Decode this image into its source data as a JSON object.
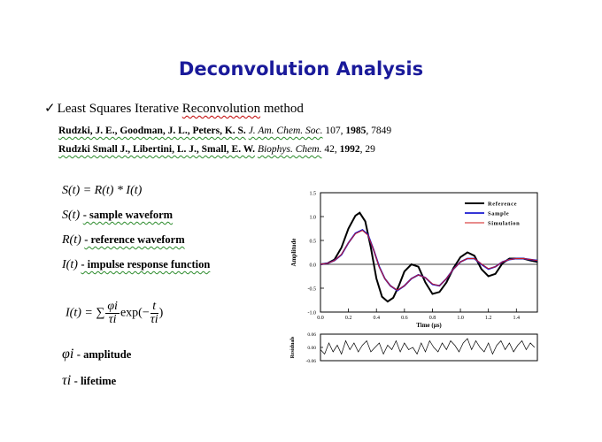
{
  "title": "Deconvolution Analysis",
  "method": {
    "check": "✓",
    "text": "Least Squares Iterative Reconvolution method"
  },
  "references": [
    {
      "authors": "Rudzki, J. E., Goodman, J. L., Peters, K. S.",
      "journal": "J. Am. Chem. Soc.",
      "volume": "107",
      "year": "1985",
      "page": "7849"
    },
    {
      "authors": "Rudzki Small J., Libertini, L. J., Small, E. W.",
      "journal": "Biophys. Chem.",
      "volume": "42",
      "year": "1992",
      "page": "29"
    }
  ],
  "equations": {
    "main": "S(t) = R(t) * I(t)",
    "s_sym": "S(t)",
    "s_desc": "- sample waveform",
    "r_sym": "R(t)",
    "r_desc": "- reference waveform",
    "i_sym": "I(t)",
    "i_desc": "- impulse response function",
    "sum_lhs": "I(t) = ∑",
    "phi_i": "φi",
    "tau_i": "τi",
    "exp": "exp(−",
    "t": "t",
    "close": ")",
    "phi_sym": "φi",
    "phi_desc": "- amplitude",
    "tau_sym": "τi",
    "tau_desc": "- lifetime"
  },
  "chart_data": [
    {
      "type": "line",
      "xlabel": "Time (μs)",
      "ylabel": "Amplitude",
      "xlim": [
        0.0,
        1.55
      ],
      "ylim": [
        -1.0,
        1.5
      ],
      "xticks": [
        "0.0",
        "0.2",
        "0.4",
        "0.6",
        "0.8",
        "1.0",
        "1.2",
        "1.4"
      ],
      "yticks": [
        "1.5",
        "1.0",
        "0.5",
        "0.0",
        "-0.5",
        "-1.0"
      ],
      "legend_position": "top-right",
      "series": [
        {
          "name": "Reference",
          "color": "#000000",
          "x": [
            0.0,
            0.05,
            0.1,
            0.15,
            0.2,
            0.25,
            0.28,
            0.32,
            0.36,
            0.4,
            0.44,
            0.48,
            0.52,
            0.56,
            0.6,
            0.65,
            0.7,
            0.75,
            0.8,
            0.85,
            0.9,
            0.95,
            1.0,
            1.05,
            1.1,
            1.15,
            1.2,
            1.25,
            1.3,
            1.35,
            1.4,
            1.45,
            1.5,
            1.55
          ],
          "y": [
            0.0,
            0.02,
            0.1,
            0.35,
            0.75,
            1.02,
            1.08,
            0.9,
            0.35,
            -0.3,
            -0.68,
            -0.78,
            -0.7,
            -0.45,
            -0.15,
            0.0,
            -0.05,
            -0.38,
            -0.62,
            -0.58,
            -0.38,
            -0.08,
            0.15,
            0.25,
            0.18,
            -0.1,
            -0.25,
            -0.2,
            0.02,
            0.12,
            0.12,
            0.12,
            0.08,
            0.05
          ]
        },
        {
          "name": "Sample",
          "color": "#1a1ad0",
          "x": [
            0.0,
            0.05,
            0.1,
            0.15,
            0.2,
            0.25,
            0.3,
            0.34,
            0.38,
            0.42,
            0.46,
            0.5,
            0.55,
            0.6,
            0.65,
            0.7,
            0.75,
            0.8,
            0.85,
            0.9,
            0.95,
            1.0,
            1.05,
            1.1,
            1.15,
            1.2,
            1.25,
            1.3,
            1.35,
            1.4,
            1.45,
            1.5,
            1.55
          ],
          "y": [
            0.0,
            0.02,
            0.08,
            0.2,
            0.45,
            0.65,
            0.72,
            0.62,
            0.3,
            -0.05,
            -0.3,
            -0.45,
            -0.55,
            -0.45,
            -0.3,
            -0.22,
            -0.28,
            -0.42,
            -0.45,
            -0.3,
            -0.1,
            0.05,
            0.12,
            0.12,
            0.0,
            -0.1,
            -0.05,
            0.05,
            0.1,
            0.12,
            0.12,
            0.1,
            0.08
          ]
        },
        {
          "name": "Simulation",
          "color": "#d01a1a",
          "x": [
            0.0,
            0.05,
            0.1,
            0.15,
            0.2,
            0.25,
            0.3,
            0.34,
            0.38,
            0.42,
            0.46,
            0.5,
            0.55,
            0.6,
            0.65,
            0.7,
            0.75,
            0.8,
            0.85,
            0.9,
            0.95,
            1.0,
            1.05,
            1.1,
            1.15,
            1.2,
            1.25,
            1.3,
            1.35,
            1.4,
            1.45,
            1.5,
            1.55
          ],
          "y": [
            0.0,
            0.02,
            0.08,
            0.21,
            0.45,
            0.64,
            0.71,
            0.61,
            0.3,
            -0.06,
            -0.3,
            -0.45,
            -0.54,
            -0.45,
            -0.3,
            -0.22,
            -0.28,
            -0.41,
            -0.45,
            -0.3,
            -0.1,
            0.05,
            0.12,
            0.12,
            0.01,
            -0.09,
            -0.05,
            0.05,
            0.1,
            0.12,
            0.12,
            0.1,
            0.08
          ]
        }
      ]
    },
    {
      "type": "line",
      "ylabel": "Residuals",
      "xlim": [
        0.0,
        1.55
      ],
      "ylim": [
        -0.06,
        0.06
      ],
      "yticks": [
        "0.06",
        "0.00",
        "-0.06"
      ],
      "series": [
        {
          "name": "",
          "color": "#000000",
          "x": [
            0.0,
            0.03,
            0.06,
            0.09,
            0.12,
            0.15,
            0.18,
            0.21,
            0.24,
            0.27,
            0.3,
            0.33,
            0.36,
            0.39,
            0.42,
            0.45,
            0.48,
            0.51,
            0.54,
            0.57,
            0.6,
            0.63,
            0.66,
            0.69,
            0.72,
            0.75,
            0.78,
            0.81,
            0.84,
            0.87,
            0.9,
            0.93,
            0.96,
            0.99,
            1.02,
            1.05,
            1.08,
            1.11,
            1.14,
            1.17,
            1.2,
            1.23,
            1.26,
            1.29,
            1.32,
            1.35,
            1.38,
            1.41,
            1.44,
            1.47,
            1.5,
            1.53
          ],
          "y": [
            -0.01,
            -0.03,
            0.02,
            -0.02,
            0.01,
            -0.03,
            0.03,
            -0.01,
            0.02,
            -0.02,
            0.01,
            0.03,
            -0.02,
            0.0,
            0.02,
            -0.03,
            0.01,
            -0.01,
            0.03,
            -0.02,
            0.02,
            -0.01,
            0.0,
            -0.03,
            0.02,
            -0.02,
            0.03,
            0.0,
            -0.02,
            0.02,
            -0.01,
            0.03,
            0.01,
            -0.02,
            0.02,
            0.04,
            -0.01,
            0.03,
            0.0,
            -0.02,
            0.02,
            -0.03,
            0.01,
            0.03,
            -0.01,
            0.02,
            -0.02,
            0.01,
            0.03,
            -0.01,
            0.02,
            0.0
          ]
        }
      ]
    }
  ]
}
